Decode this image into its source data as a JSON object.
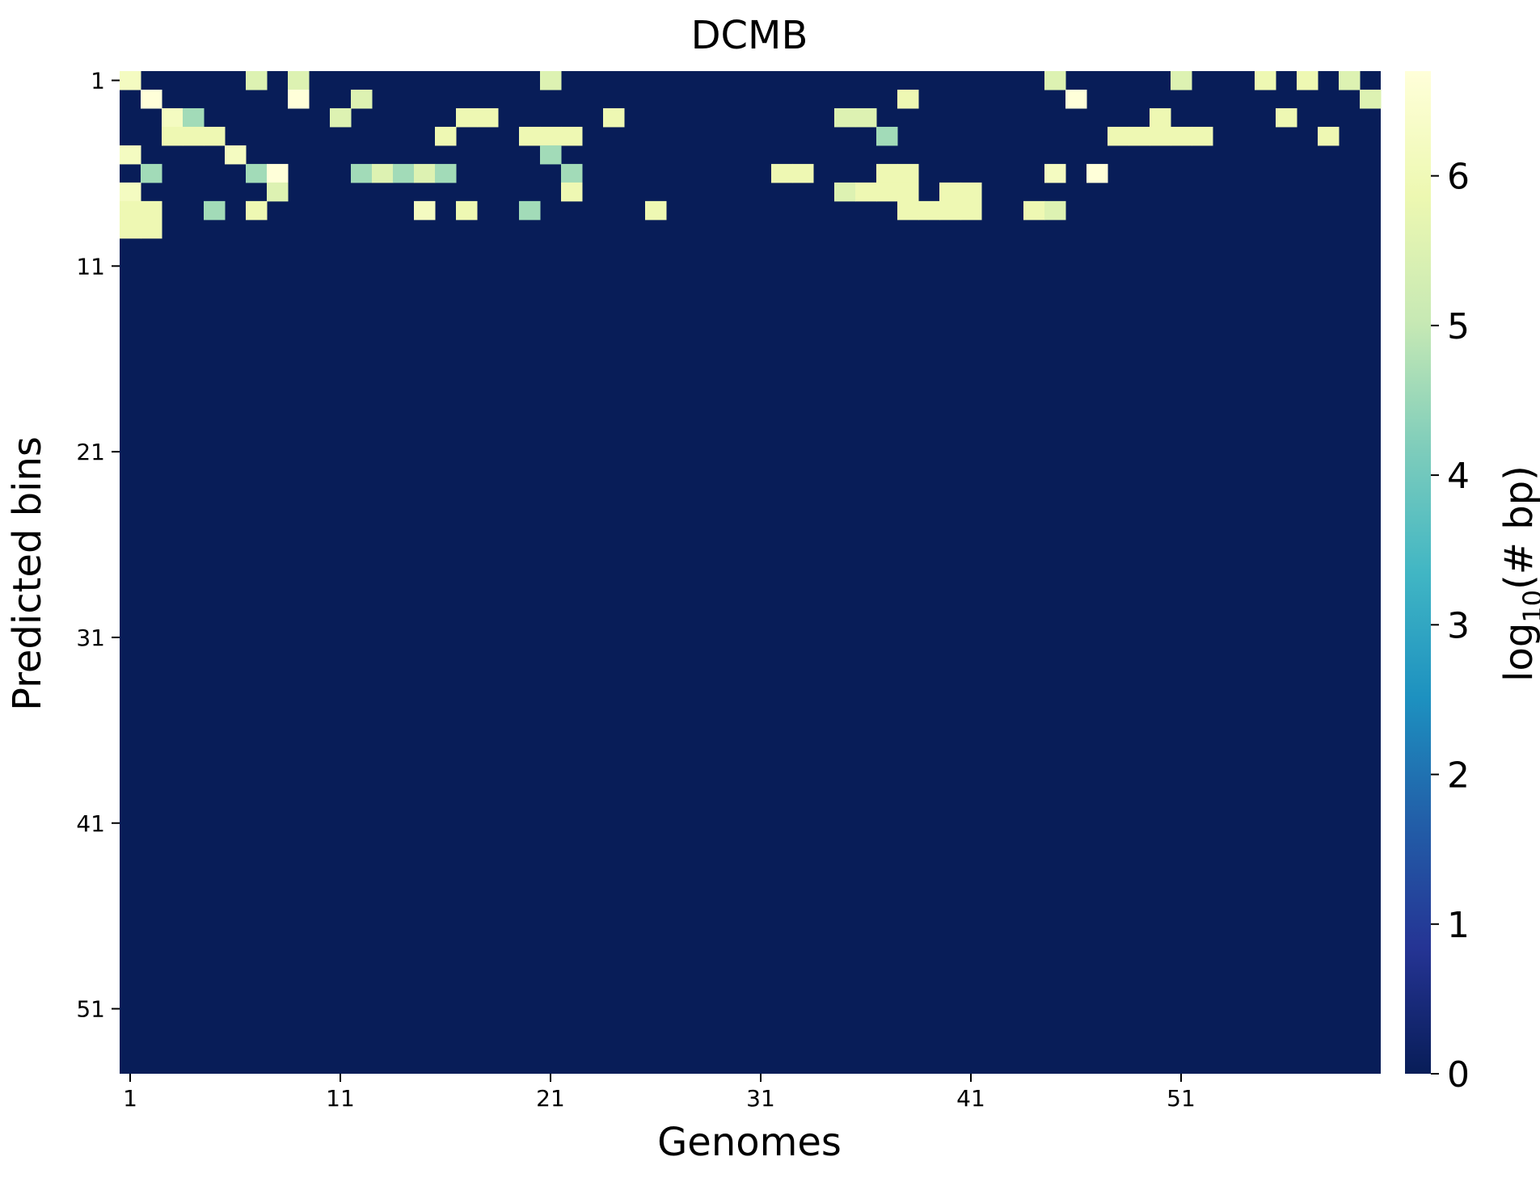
{
  "chart_data": {
    "type": "heatmap",
    "title": "DCMB",
    "xlabel": "Genomes",
    "ylabel": "Predicted bins",
    "colorbar": {
      "label_main": "log",
      "label_sub": "10",
      "label_rest": "(# bp)",
      "range": [
        0,
        6.7
      ],
      "ticks": [
        "0",
        "1",
        "2",
        "3",
        "4",
        "5",
        "6"
      ],
      "colormap": "YlGnBu",
      "colors": [
        "#081d58",
        "#253494",
        "#225ea8",
        "#1d91c0",
        "#41b6c4",
        "#7fcdbb",
        "#c7e9b4",
        "#edf8b1",
        "#ffffd9"
      ]
    },
    "x_tick_labels": [
      "1",
      "11",
      "21",
      "31",
      "41",
      "51"
    ],
    "y_tick_labels": [
      "1",
      "11",
      "21",
      "31",
      "41",
      "51"
    ],
    "n_cols": 60,
    "n_rows": 54,
    "levels": {
      "W": 6.7,
      "P": 6.2,
      "Y": 5.9,
      "L": 5.5,
      "G": 5.0,
      "M": 4.6,
      "T": 4.1,
      "C": 3.6,
      "D": 3.2,
      "B": 2.8,
      ".": 0
    },
    "rows": [
      "P.....L.L...........L.......................L.....L...Y.Y.L.Y.Y.Y.Y...........P.M.M.M.....",
      ".W......W..L.........................Y.......W.............L.................MM....M.M.....",
      "..PM......L.....YY.....Y..........LL.............Y.....Y..........................",
      "..YYY..........Y...YYY..............M..........YYYYY.....Y.........................",
      "P....P..............M.............................................L.....L..........",
      ".M....MW...MLMLM.....M.........YY...YY......P.W.................................M..........",
      "P......L.............Y............LYYY.YY.........................................",
      "YY..M.Y.......P.Y..M.....Y...........YYYY..YL................M.....MM.............",
      "YY..........................................................................................",
      "......................................................................................"
    ]
  }
}
